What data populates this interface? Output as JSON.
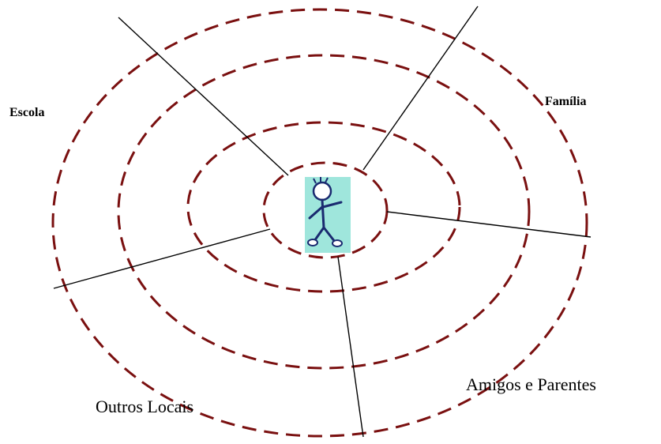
{
  "labels": {
    "escola": "Escola",
    "familia": "Família",
    "outros_locais": "Outros Locais",
    "amigos_parentes": "Amigos e Parentes"
  }
}
